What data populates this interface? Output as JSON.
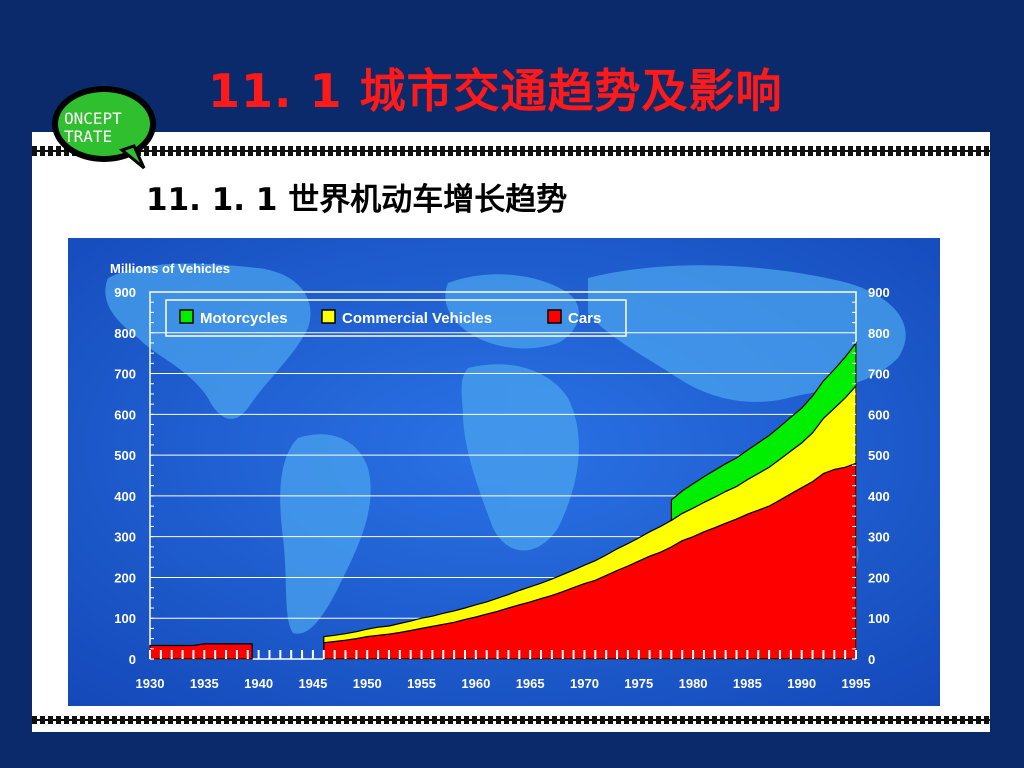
{
  "slide": {
    "title": "11. 1  城市交通趋势及影响",
    "subtitle": "11. 1. 1  世界机动车增长趋势",
    "logo_text_top": "ONCEPT",
    "logo_text_bottom": "TRATE"
  },
  "colors": {
    "background": "#0b2a6b",
    "title": "#ff1a1a",
    "chart_bg": "#1f5fd6",
    "cars": "#ff0000",
    "commercial": "#ffff00",
    "motorcycles": "#00ee00"
  },
  "chart_data": {
    "type": "area",
    "title": "",
    "ylabel": "Millions of Vehicles",
    "xlabel": "",
    "ylim": [
      0,
      900
    ],
    "xlim": [
      1930,
      1995
    ],
    "y_ticks": [
      0,
      100,
      200,
      300,
      400,
      500,
      600,
      700,
      800,
      900
    ],
    "x_ticks": [
      1930,
      1935,
      1940,
      1945,
      1950,
      1955,
      1960,
      1965,
      1970,
      1975,
      1980,
      1985,
      1990,
      1995
    ],
    "grid": true,
    "legend_position": "top-left",
    "x": [
      1930,
      1931,
      1932,
      1933,
      1934,
      1935,
      1936,
      1937,
      1938,
      1939,
      1946,
      1947,
      1948,
      1949,
      1950,
      1951,
      1952,
      1953,
      1954,
      1955,
      1956,
      1957,
      1958,
      1959,
      1960,
      1961,
      1962,
      1963,
      1964,
      1965,
      1966,
      1967,
      1968,
      1969,
      1970,
      1971,
      1972,
      1973,
      1974,
      1975,
      1976,
      1977,
      1978,
      1979,
      1980,
      1981,
      1982,
      1983,
      1984,
      1985,
      1986,
      1987,
      1988,
      1989,
      1990,
      1991,
      1992,
      1993,
      1994,
      1995
    ],
    "series": [
      {
        "name": "Cars",
        "color": "#ff0000",
        "values": [
          33,
          33,
          33,
          33,
          33,
          37,
          37,
          37,
          37,
          37,
          40,
          43,
          46,
          50,
          55,
          58,
          61,
          65,
          70,
          75,
          80,
          85,
          90,
          97,
          103,
          110,
          117,
          125,
          133,
          140,
          148,
          156,
          165,
          175,
          185,
          193,
          205,
          217,
          228,
          240,
          252,
          262,
          275,
          290,
          300,
          312,
          322,
          333,
          343,
          355,
          365,
          375,
          390,
          405,
          420,
          435,
          455,
          465,
          470,
          480
        ]
      },
      {
        "name": "Commercial Vehicles",
        "color": "#ffff00",
        "values": [
          0,
          0,
          0,
          0,
          0,
          0,
          0,
          0,
          0,
          0,
          15,
          15,
          16,
          17,
          18,
          20,
          20,
          22,
          23,
          25,
          25,
          27,
          28,
          28,
          30,
          30,
          32,
          33,
          35,
          37,
          38,
          40,
          42,
          43,
          45,
          48,
          50,
          53,
          55,
          57,
          60,
          63,
          65,
          67,
          70,
          72,
          75,
          78,
          80,
          85,
          90,
          95,
          100,
          105,
          110,
          120,
          135,
          150,
          170,
          190
        ]
      },
      {
        "name": "Motorcycles",
        "color": "#00ee00",
        "values": [
          0,
          0,
          0,
          0,
          0,
          0,
          0,
          0,
          0,
          0,
          0,
          0,
          0,
          0,
          0,
          0,
          0,
          0,
          0,
          0,
          0,
          0,
          0,
          0,
          0,
          0,
          0,
          0,
          0,
          0,
          0,
          0,
          0,
          0,
          0,
          0,
          0,
          0,
          0,
          0,
          0,
          0,
          50,
          55,
          60,
          63,
          66,
          68,
          70,
          72,
          75,
          78,
          80,
          83,
          85,
          90,
          92,
          95,
          100,
          105
        ]
      }
    ],
    "legend": [
      {
        "label": "Motorcycles",
        "color": "#00ee00"
      },
      {
        "label": "Commercial Vehicles",
        "color": "#ffff00"
      },
      {
        "label": "Cars",
        "color": "#ff0000"
      }
    ]
  }
}
